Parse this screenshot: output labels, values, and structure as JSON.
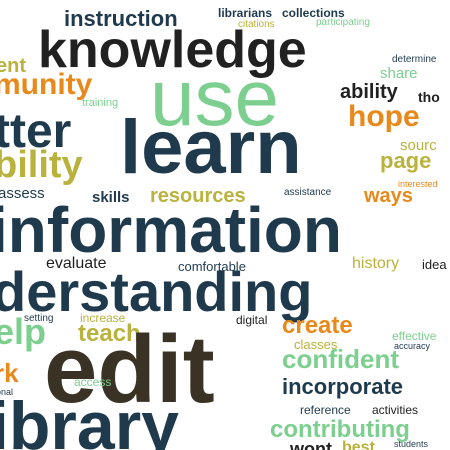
{
  "palette": {
    "navy": "#1f3a4d",
    "green": "#7ccf8f",
    "orange": "#e8891b",
    "olive": "#b9b23d",
    "dark": "#212121",
    "brown": "#3a3325"
  },
  "words": [
    "instruction",
    "librarians",
    "collections",
    "citations",
    "participating",
    "knowledge",
    "ent",
    "determine",
    "share",
    "munity",
    "use",
    "ability",
    "tho",
    "training",
    "tter",
    "hope",
    "learn",
    "sourc",
    "bility",
    "page",
    "interested",
    "assess",
    "skills",
    "resources",
    "assistance",
    "ways",
    "information",
    "evaluate",
    "comfortable",
    "history",
    "idea",
    "derstanding",
    "elp",
    "setting",
    "increase",
    "digital",
    "teach",
    "create",
    "effective",
    "accuracy",
    "classes",
    "edit",
    "confident",
    "rk",
    "access",
    "incorporate",
    "onal",
    "reference",
    "activities",
    "ibrary",
    "contributing",
    "students",
    "wont",
    "best"
  ]
}
